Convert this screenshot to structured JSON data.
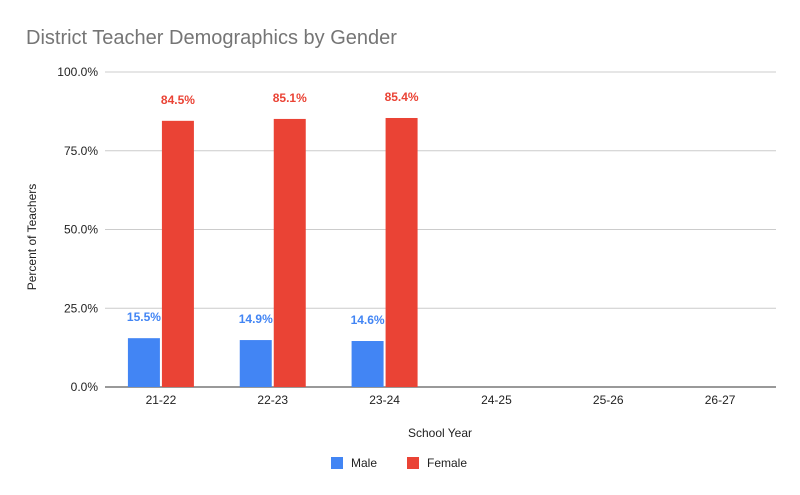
{
  "chart_data": {
    "type": "bar",
    "title": "District Teacher Demographics by Gender",
    "xlabel": "School Year",
    "ylabel": "Percent of Teachers",
    "categories": [
      "21-22",
      "22-23",
      "23-24",
      "24-25",
      "25-26",
      "26-27"
    ],
    "ylim": [
      0,
      100
    ],
    "yticks": [
      "0.0%",
      "25.0%",
      "50.0%",
      "75.0%",
      "100.0%"
    ],
    "ytick_values": [
      0,
      25,
      50,
      75,
      100
    ],
    "grid": true,
    "legend_position": "bottom",
    "series": [
      {
        "name": "Male",
        "color": "#4285f4",
        "values": [
          15.5,
          14.9,
          14.6,
          null,
          null,
          null
        ],
        "labels": [
          "15.5%",
          "14.9%",
          "14.6%",
          "",
          "",
          ""
        ]
      },
      {
        "name": "Female",
        "color": "#ea4335",
        "values": [
          84.5,
          85.1,
          85.4,
          null,
          null,
          null
        ],
        "labels": [
          "84.5%",
          "85.1%",
          "85.4%",
          "",
          "",
          ""
        ]
      }
    ]
  }
}
